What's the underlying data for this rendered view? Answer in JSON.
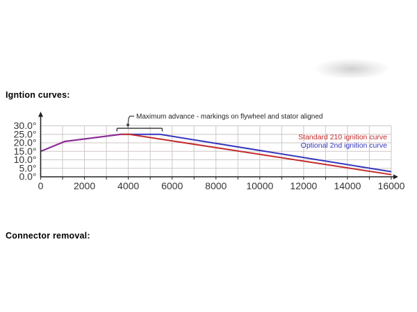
{
  "sections": {
    "ignition_title": "Igntion curves:",
    "connector_title": "Connector removal:"
  },
  "chart_data": {
    "type": "line",
    "title": "",
    "xlabel": "",
    "ylabel": "",
    "x_range": [
      0,
      16000
    ],
    "y_range": [
      0,
      30
    ],
    "x_grid_step": 1000,
    "x_label_step": 2000,
    "x_tick_labels": [
      "0",
      "2000",
      "4000",
      "6000",
      "8000",
      "10000",
      "12000",
      "14000",
      "16000"
    ],
    "y_tick_values": [
      0,
      5,
      10,
      15,
      20,
      25,
      30
    ],
    "y_tick_labels": [
      "0.0°",
      "5.0°",
      "10.0°",
      "15.0°",
      "20.0°",
      "25.0°",
      "30.0°"
    ],
    "grid": true,
    "grid_color": "#cfc6c6",
    "axis_color": "#222222",
    "label_color": "#333333",
    "legend_position": "top-right",
    "series": [
      {
        "name": "Standard 210 ignition curve",
        "color": "#c32a2a",
        "points": [
          [
            0,
            15
          ],
          [
            1100,
            20.8
          ],
          [
            3650,
            25
          ],
          [
            4050,
            25
          ],
          [
            16000,
            1.3
          ]
        ]
      },
      {
        "name": "Optional 2nd ignition curve",
        "color": "#3434bd",
        "points": [
          [
            0,
            15
          ],
          [
            1100,
            20.8
          ],
          [
            3650,
            25
          ],
          [
            5450,
            25
          ],
          [
            16000,
            3
          ]
        ]
      }
    ],
    "overlap_segment": {
      "color": "#8c2f9e",
      "points": [
        [
          0,
          15
        ],
        [
          1100,
          20.8
        ],
        [
          3650,
          25
        ]
      ]
    },
    "annotation": {
      "text": "Maximum advance - markings on flywheel and stator aligned",
      "bracket_rpm_range": [
        3480,
        5550
      ],
      "arrow_rpm": 4000
    }
  }
}
